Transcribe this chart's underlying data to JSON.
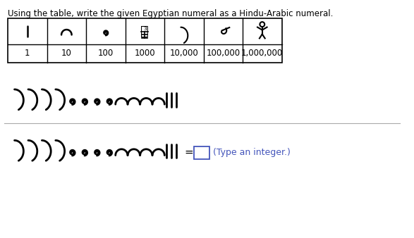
{
  "title": "Using the table, write the given Egyptian numeral as a Hindu-Arabic numeral.",
  "table_values": [
    "1",
    "10",
    "100",
    "1000",
    "10,000",
    "100,000",
    "1,000,000"
  ],
  "answer_label": "(Type an integer.)",
  "bg_color": "#ffffff",
  "text_color": "#000000",
  "table_border_color": "#000000",
  "answer_box_color": "#4455bb",
  "figure_width": 5.87,
  "figure_height": 3.38,
  "title_fontsize": 8.5,
  "num_fontsize": 8.5,
  "eg_fontsize": 22
}
